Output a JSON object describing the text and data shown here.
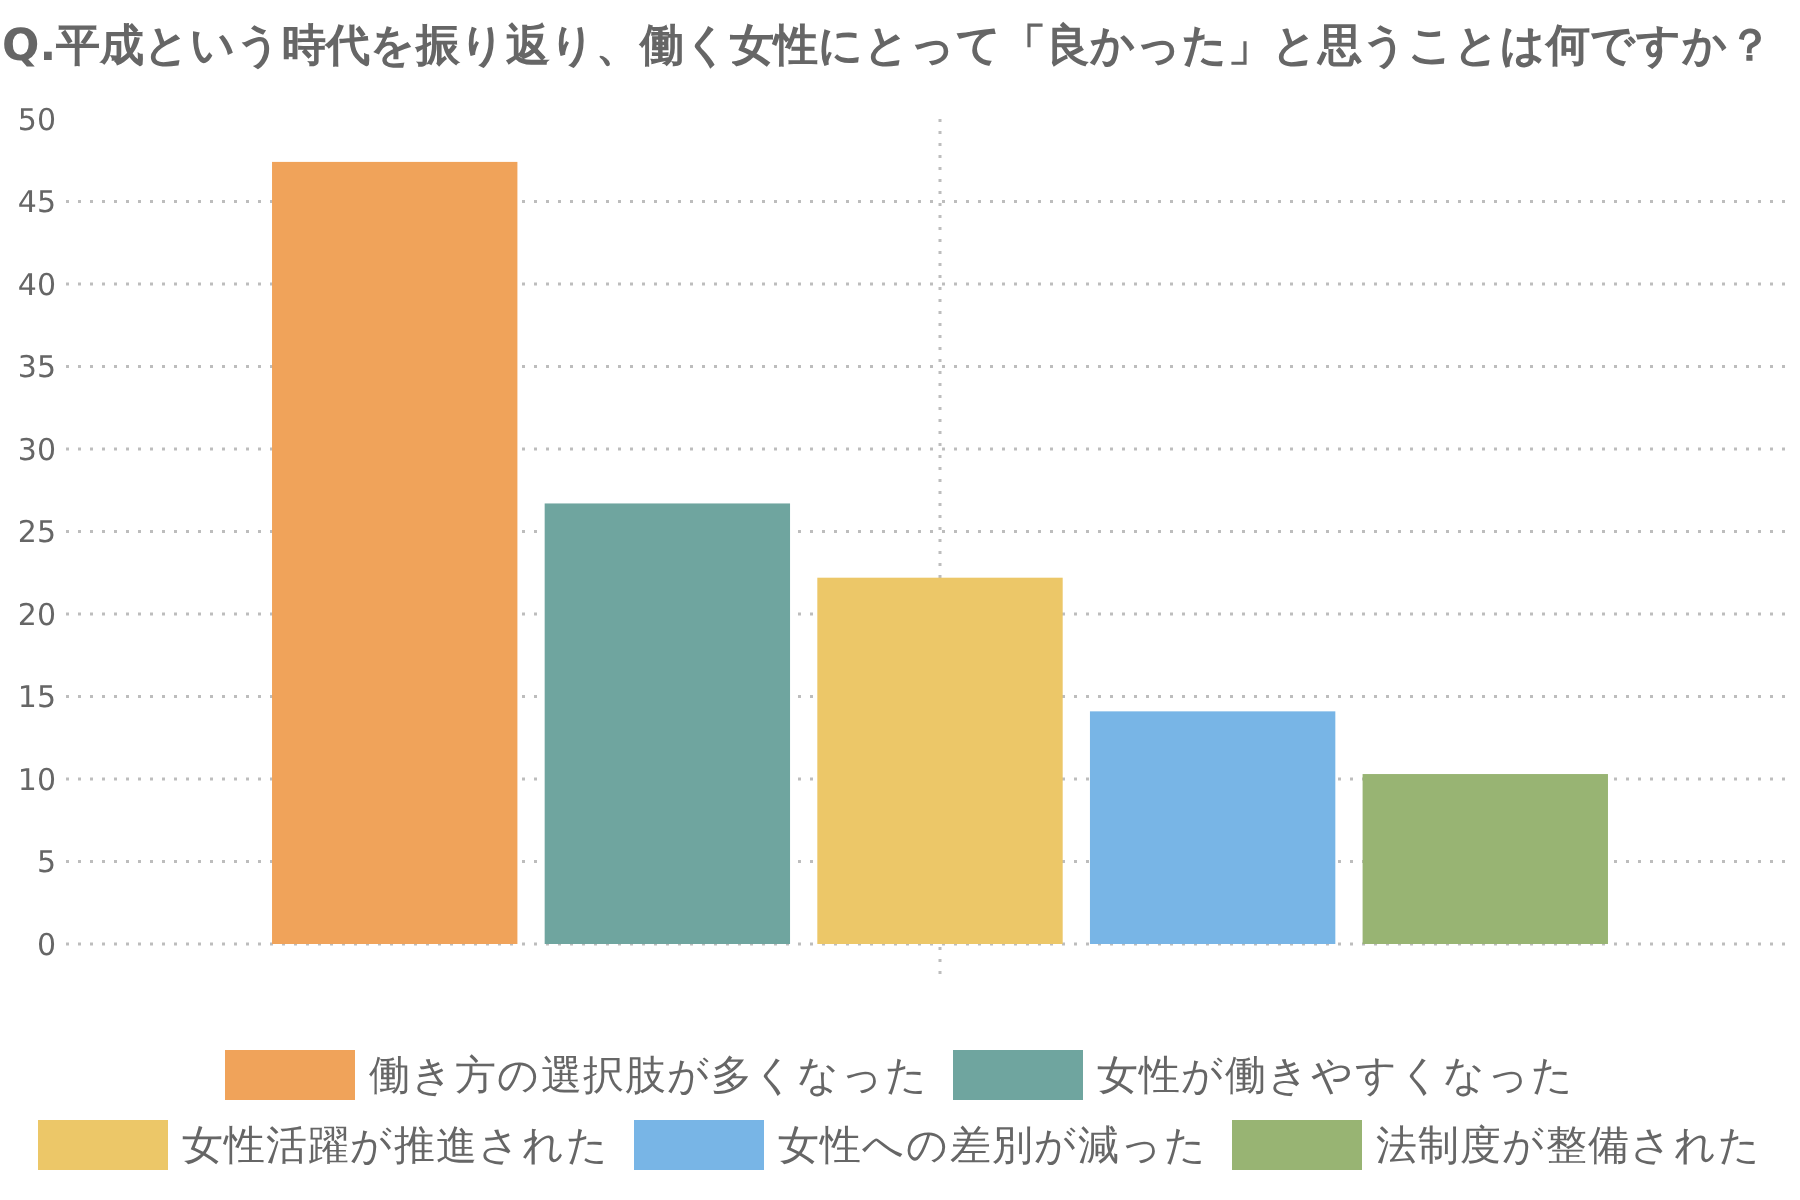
{
  "chart_data": {
    "type": "bar",
    "title": "Q.平成という時代を振り返り、働く女性にとって「良かった」と思うことは何ですか？",
    "categories": [
      null
    ],
    "series": [
      {
        "name": "働き方の選択肢が多くなった",
        "color": "#f0a35a",
        "values": [
          47.4
        ]
      },
      {
        "name": "女性が働きやすくなった",
        "color": "#6fa59f",
        "values": [
          26.7
        ]
      },
      {
        "name": "女性活躍が推進された",
        "color": "#ecc768",
        "values": [
          22.2
        ]
      },
      {
        "name": "女性への差別が減った",
        "color": "#78b5e6",
        "values": [
          14.1
        ]
      },
      {
        "name": "法制度が整備された",
        "color": "#98b473",
        "values": [
          10.3
        ]
      }
    ],
    "ylim": [
      0,
      50
    ],
    "yticks": [
      0,
      5,
      10,
      15,
      20,
      25,
      30,
      35,
      40,
      45,
      50
    ],
    "grid": true,
    "legend": "bottom"
  }
}
